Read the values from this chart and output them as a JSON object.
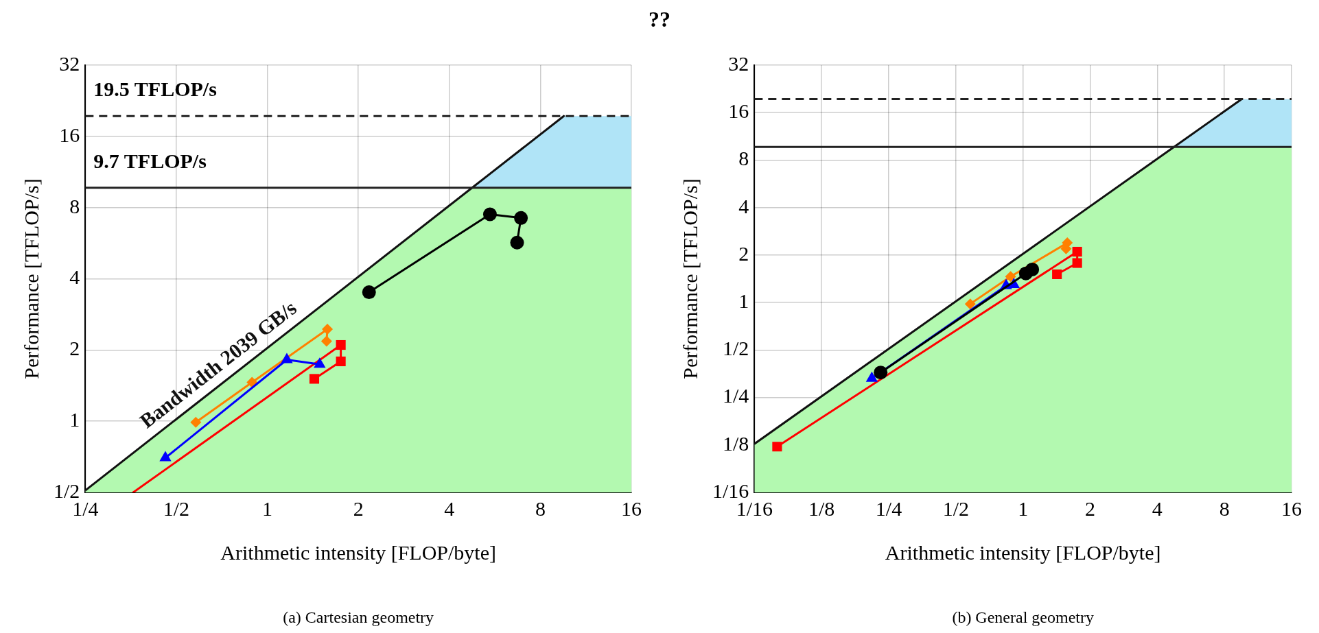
{
  "chart_data": [
    {
      "type": "line",
      "title": "??",
      "xlabel": "Arithmetic intensity [FLOP/byte]",
      "ylabel": "Performance [TFLOP/s]",
      "log": "xy",
      "grid": true,
      "xlim": [
        0.25,
        16
      ],
      "ylim": [
        0.5,
        32
      ],
      "xticks": [
        {
          "value": 0.25,
          "label": "1/4"
        },
        {
          "value": 0.5,
          "label": "1/2"
        },
        1,
        2,
        4,
        8,
        16
      ],
      "yticks": [
        {
          "value": 0.5,
          "label": "1/2"
        },
        1,
        2,
        4,
        8,
        16,
        32
      ],
      "series": [
        {
          "type": "area",
          "color": "#b3f9b0",
          "marker": "none",
          "x": [
            0.25,
            4.757,
            9.563,
            16
          ],
          "values": [
            0.51,
            9.7,
            9.7,
            9.7
          ]
        },
        {
          "type": "area",
          "color": "#b0e4f7",
          "marker": "none",
          "x": [
            4.757,
            9.563,
            16
          ],
          "values": [
            9.7,
            19.5,
            19.5
          ]
        },
        {
          "type": "line",
          "name": "Bandwidth 2039 GB/s",
          "color": "#111111",
          "marker": "none",
          "x": [
            0.25,
            4.757,
            9.563
          ],
          "values": [
            0.51,
            9.7,
            19.5
          ]
        },
        {
          "type": "line",
          "color": "#ff0000",
          "marker": [
            "none",
            "square",
            "square",
            "square"
          ],
          "x": [
            0.36,
            1.75,
            1.75,
            1.43
          ],
          "values": [
            0.5,
            2.1,
            1.79,
            1.51
          ]
        },
        {
          "type": "line",
          "color": "#ff8000",
          "marker": "diamond",
          "x": [
            0.58,
            0.89,
            1.58,
            1.57
          ],
          "values": [
            0.99,
            1.46,
            2.45,
            2.18
          ]
        },
        {
          "type": "line",
          "color": "#0000ff",
          "marker": "triangle",
          "x": [
            0.46,
            1.16,
            1.49
          ],
          "values": [
            0.7,
            1.82,
            1.74
          ]
        },
        {
          "type": "line",
          "color": "#000000",
          "marker": "circle",
          "x": [
            2.17,
            5.45,
            6.9,
            6.7
          ],
          "values": [
            3.51,
            7.49,
            7.23,
            5.69
          ]
        }
      ],
      "ref_lines": [
        {
          "axis": "y",
          "value": 19.5,
          "label": "19.5 TFLOP/s",
          "line_style": "dashed",
          "color": "#222222"
        },
        {
          "axis": "y",
          "value": 9.7,
          "label": "9.7 TFLOP/s",
          "line_style": "solid",
          "color": "#222222"
        }
      ],
      "annotations": [
        "(a) Cartesian geometry"
      ]
    },
    {
      "type": "line",
      "xlabel": "Arithmetic intensity [FLOP/byte]",
      "ylabel": "Performance [TFLOP/s]",
      "log": "xy",
      "grid": true,
      "xlim": [
        0.0625,
        16
      ],
      "ylim": [
        0.0625,
        32
      ],
      "xticks": [
        {
          "value": 0.0625,
          "label": "1/16"
        },
        {
          "value": 0.125,
          "label": "1/8"
        },
        {
          "value": 0.25,
          "label": "1/4"
        },
        {
          "value": 0.5,
          "label": "1/2"
        },
        1,
        2,
        4,
        8,
        16
      ],
      "yticks": [
        {
          "value": 0.0625,
          "label": "1/16"
        },
        {
          "value": 0.125,
          "label": "1/8"
        },
        {
          "value": 0.25,
          "label": "1/4"
        },
        {
          "value": 0.5,
          "label": "1/2"
        },
        1,
        2,
        4,
        8,
        16,
        32
      ],
      "series": [
        {
          "type": "area",
          "color": "#b3f9b0",
          "marker": "none",
          "x": [
            0.0625,
            4.757,
            9.563,
            16
          ],
          "values": [
            0.127,
            9.7,
            9.7,
            9.7
          ]
        },
        {
          "type": "area",
          "color": "#b0e4f7",
          "marker": "none",
          "x": [
            4.757,
            9.563,
            16
          ],
          "values": [
            9.7,
            19.5,
            19.5
          ]
        },
        {
          "type": "line",
          "color": "#111111",
          "marker": "none",
          "x": [
            0.0625,
            4.757,
            9.563
          ],
          "values": [
            0.127,
            9.7,
            19.5
          ]
        },
        {
          "type": "line",
          "color": "#ff0000",
          "marker": "square",
          "x": [
            0.079,
            1.75,
            1.75,
            1.42
          ],
          "values": [
            0.122,
            2.1,
            1.78,
            1.51
          ]
        },
        {
          "type": "line",
          "color": "#ff8000",
          "marker": "diamond",
          "x": [
            0.58,
            0.88,
            1.58,
            1.56
          ],
          "values": [
            0.98,
            1.46,
            2.39,
            2.19
          ]
        },
        {
          "type": "line",
          "color": "#0000ff",
          "marker": "triangle",
          "x": [
            0.21,
            0.84,
            0.91
          ],
          "values": [
            0.33,
            1.28,
            1.3
          ]
        },
        {
          "type": "line",
          "color": "#000000",
          "marker": "circle",
          "x": [
            0.23,
            1.03,
            1.1
          ],
          "values": [
            0.36,
            1.53,
            1.62
          ]
        }
      ],
      "ref_lines": [
        {
          "axis": "y",
          "value": 19.5,
          "line_style": "dashed",
          "color": "#222222"
        },
        {
          "axis": "y",
          "value": 9.7,
          "line_style": "solid",
          "color": "#222222"
        }
      ],
      "annotations": [
        "(b) General geometry"
      ]
    }
  ]
}
